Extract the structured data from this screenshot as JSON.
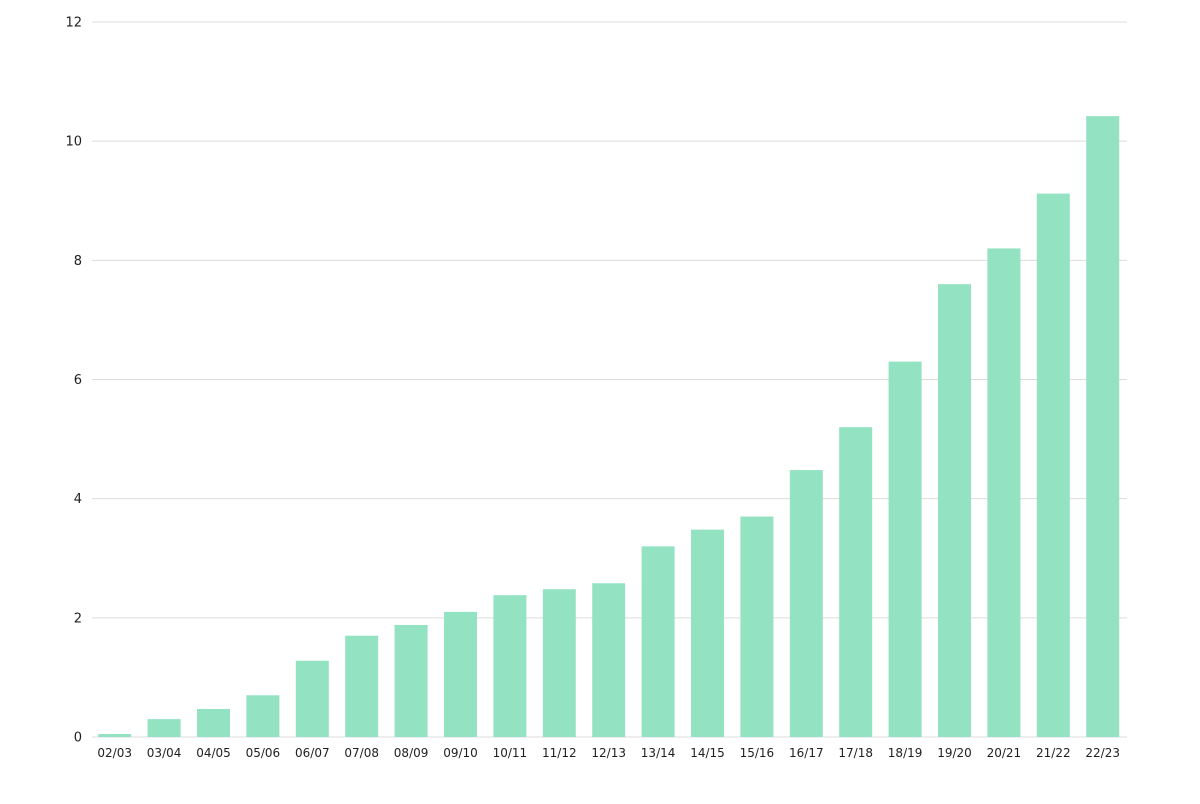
{
  "chart_data": {
    "type": "bar",
    "categories": [
      "02/03",
      "03/04",
      "04/05",
      "05/06",
      "06/07",
      "07/08",
      "08/09",
      "09/10",
      "10/11",
      "11/12",
      "12/13",
      "13/14",
      "14/15",
      "15/16",
      "16/17",
      "17/18",
      "18/19",
      "19/20",
      "20/21",
      "21/22",
      "22/23"
    ],
    "values": [
      0.05,
      0.3,
      0.47,
      0.7,
      1.28,
      1.7,
      1.88,
      2.1,
      2.38,
      2.48,
      2.58,
      3.2,
      3.48,
      3.7,
      4.48,
      5.2,
      6.3,
      7.6,
      8.2,
      9.12,
      10.42
    ],
    "ylim": [
      0,
      12
    ],
    "yticks": [
      0,
      2,
      4,
      6,
      8,
      10,
      12
    ],
    "grid": true,
    "bar_color": "#93e2c2",
    "gridline_color": "#dcdcdc"
  }
}
